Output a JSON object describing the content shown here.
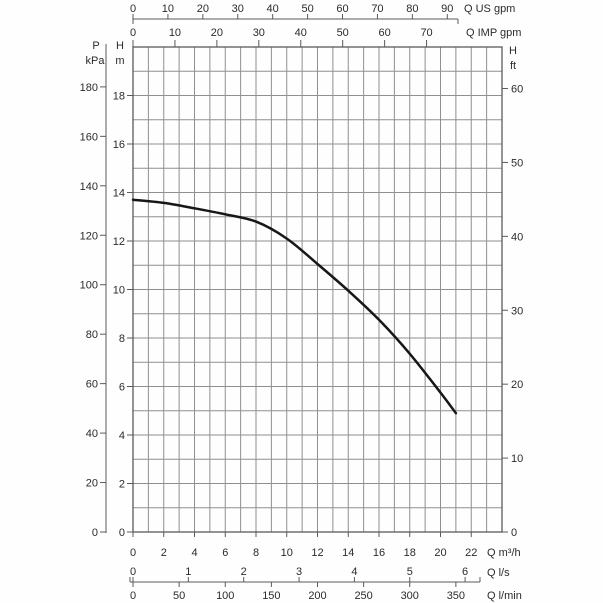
{
  "chart_data": {
    "type": "line",
    "title": "",
    "description": "Pump head performance curve (H vs Q) with multi-unit axes",
    "plot": {
      "x_base_unit": "m3/h",
      "y_base_unit": "m",
      "x_min": 0,
      "x_max": 24,
      "y_min": 0,
      "y_max": 20,
      "grid": true,
      "grid_step_x": 1,
      "grid_step_y": 1
    },
    "series": [
      {
        "name": "pump-head-curve",
        "x": [
          0,
          2,
          4,
          6,
          8,
          10,
          12,
          14,
          16,
          18,
          20,
          21
        ],
        "y": [
          13.7,
          13.57,
          13.35,
          13.1,
          12.8,
          12.1,
          11.05,
          9.95,
          8.75,
          7.35,
          5.75,
          4.9
        ]
      }
    ],
    "axes": {
      "top": [
        {
          "name": "q-us-gpm",
          "label": "Q US gpm",
          "ticks": [
            0,
            10,
            20,
            30,
            40,
            50,
            60,
            70,
            80,
            90
          ],
          "to_base": 0.2271247
        },
        {
          "name": "q-imp-gpm",
          "label": "Q IMP gpm",
          "ticks": [
            0,
            10,
            20,
            30,
            40,
            50,
            60,
            70
          ],
          "to_base": 0.2727654
        }
      ],
      "bottom": [
        {
          "name": "q-m3h",
          "label": "Q m³/h",
          "ticks": [
            0,
            2,
            4,
            6,
            8,
            10,
            12,
            14,
            16,
            18,
            20,
            22
          ],
          "to_base": 1
        },
        {
          "name": "q-ls",
          "label": "Q l/s",
          "ticks": [
            0,
            1,
            2,
            3,
            4,
            5,
            6
          ],
          "to_base": 3.6
        },
        {
          "name": "q-lmin",
          "label": "Q l/min",
          "ticks": [
            0,
            50,
            100,
            150,
            200,
            250,
            300,
            350
          ],
          "to_base": 0.06
        }
      ],
      "left": [
        {
          "name": "p-kpa",
          "label_top": "P",
          "label_bottom": "kPa",
          "ticks": [
            0,
            20,
            40,
            60,
            80,
            100,
            120,
            140,
            160,
            180
          ],
          "to_base": 0.101972
        },
        {
          "name": "h-m",
          "label_top": "H",
          "label_bottom": "m",
          "ticks": [
            0,
            2,
            4,
            6,
            8,
            10,
            12,
            14,
            16,
            18
          ],
          "to_base": 1
        }
      ],
      "right": [
        {
          "name": "h-ft",
          "label_top": "H",
          "label_bottom": "ft",
          "ticks": [
            0,
            10,
            20,
            30,
            40,
            50,
            60
          ],
          "to_base": 0.3048
        }
      ]
    },
    "colors": {
      "background": "#fefefe",
      "grid": "#8f8f8f",
      "frame": "#5a5a5a",
      "axis": "#5a5a5a",
      "text": "#2b2b2b",
      "curve": "#171717"
    }
  }
}
